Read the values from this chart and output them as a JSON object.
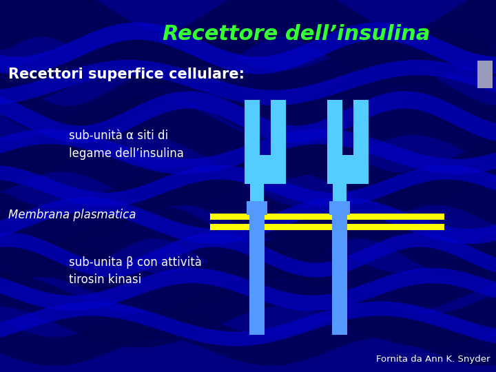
{
  "title": "Recettore dell’insulina",
  "title_color": "#33ff33",
  "title_fontsize": 22,
  "bg_color": "#000080",
  "text_color": "#ffffff",
  "label1": "sub-unità α siti di\nlegame dell’insulina",
  "label2": "Membrana plasmatica",
  "label3": "sub-unita β con attività\ntirosin kinasi",
  "label_header": "Recettori superfice cellulare:",
  "footnote": "Fornita da Ann K. Snyder",
  "receptor_alpha_color": "#55ccff",
  "receptor_beta_color": "#5599ff",
  "membrane_color": "#ffff00",
  "wave_color_dark": "#000066",
  "wave_color_mid": "#0000aa"
}
